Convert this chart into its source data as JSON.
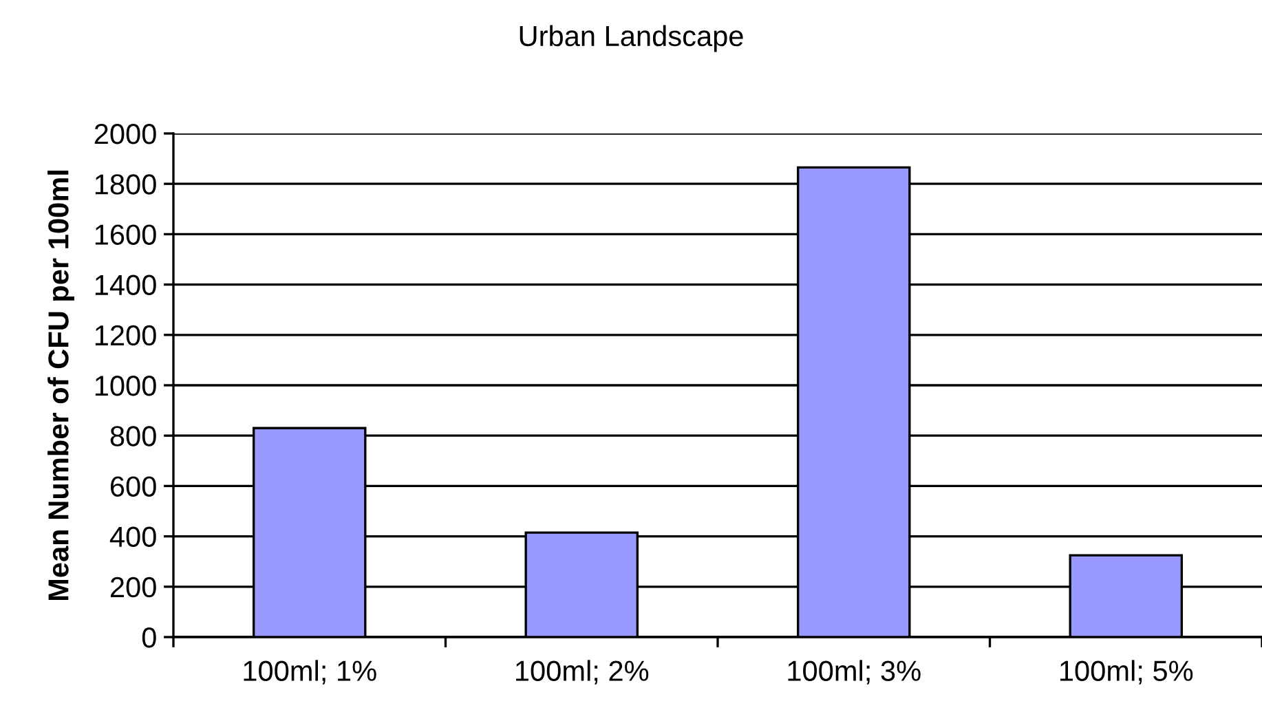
{
  "chart_data": {
    "type": "bar",
    "title": "Urban Landscape",
    "ylabel": "Mean Number of CFU per 100ml",
    "categories": [
      "100ml; 1%",
      "100ml; 2%",
      "100ml; 3%",
      "100ml; 5%"
    ],
    "values": [
      830,
      415,
      1865,
      325
    ],
    "color": "#9999ff",
    "ylim": [
      0,
      2000
    ],
    "yticks": [
      0,
      200,
      400,
      600,
      800,
      1000,
      1200,
      1400,
      1600,
      1800,
      2000
    ],
    "grid": "y",
    "legend": false
  }
}
